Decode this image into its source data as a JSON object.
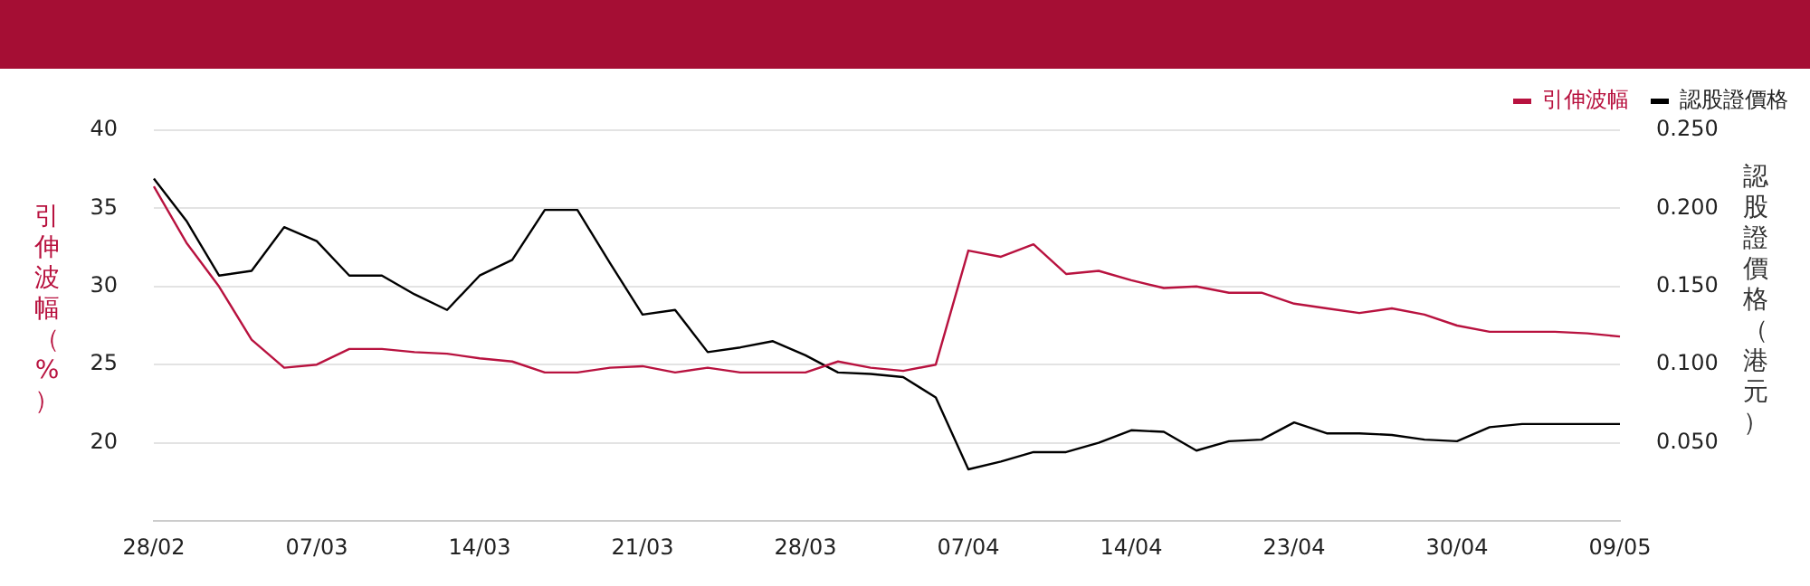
{
  "chart_data": {
    "type": "line",
    "ylabel": "引伸波幅（%）",
    "y2label": "認股證價格（港元）",
    "categories": [
      "28/02",
      null,
      null,
      null,
      null,
      "07/03",
      null,
      null,
      null,
      null,
      "14/03",
      null,
      null,
      null,
      null,
      "21/03",
      null,
      null,
      null,
      null,
      "28/03",
      null,
      null,
      null,
      null,
      "07/04",
      null,
      null,
      null,
      null,
      "14/04",
      null,
      null,
      null,
      null,
      "23/04",
      null,
      null,
      null,
      null,
      "30/04",
      null,
      null,
      null,
      null,
      "09/05"
    ],
    "series": [
      {
        "name": "引伸波幅",
        "color": "#b8123f",
        "values": [
          36.4,
          32.8,
          30.0,
          26.6,
          24.8,
          25.0,
          26.0,
          26.0,
          25.8,
          25.7,
          25.4,
          25.2,
          24.5,
          24.5,
          24.8,
          24.9,
          24.5,
          24.8,
          24.5,
          24.5,
          24.5,
          25.2,
          24.8,
          24.6,
          25.0,
          32.3,
          31.9,
          32.7,
          30.8,
          31.0,
          30.4,
          29.9,
          30.0,
          29.6,
          29.6,
          28.9,
          28.6,
          28.3,
          28.6,
          28.2,
          27.5,
          27.1,
          27.1,
          27.1,
          27.0,
          26.8
        ]
      },
      {
        "name": "認股證價格",
        "color": "#000000",
        "axis": "y2",
        "values": [
          0.219,
          0.192,
          0.157,
          0.16,
          0.188,
          0.179,
          0.157,
          0.157,
          0.145,
          0.135,
          0.157,
          0.167,
          0.199,
          0.199,
          0.165,
          0.132,
          0.135,
          0.108,
          0.111,
          0.115,
          0.106,
          0.095,
          0.094,
          0.092,
          0.079,
          0.033,
          0.038,
          0.044,
          0.044,
          0.05,
          0.058,
          0.057,
          0.045,
          0.051,
          0.052,
          0.063,
          0.056,
          0.056,
          0.055,
          0.052,
          0.051,
          0.06,
          0.062,
          0.062,
          0.062,
          0.062
        ]
      }
    ],
    "ylim": [
      15,
      40
    ],
    "yticks": [
      20,
      25,
      30,
      35,
      40
    ],
    "y2lim": [
      0,
      0.25
    ],
    "y2ticks": [
      {
        "value": 0,
        "label": null
      },
      {
        "value": 0.05,
        "label": "0.050"
      },
      {
        "value": 0.1,
        "label": "0.100"
      },
      {
        "value": 0.15,
        "label": "0.150"
      },
      {
        "value": 0.2,
        "label": "0.200"
      },
      {
        "value": 0.25,
        "label": "0.250"
      }
    ],
    "grid": "y",
    "legend": "top right",
    "marker": "none",
    "line_style": "solid"
  }
}
